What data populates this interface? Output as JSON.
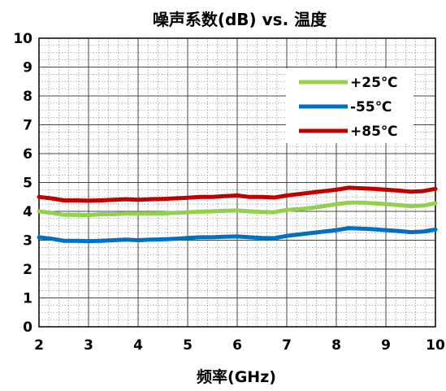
{
  "chart_data": {
    "type": "line",
    "title": "噪声系数(dB) vs. 温度",
    "xlabel": "频率(GHz)",
    "ylabel": "",
    "xlim": [
      2,
      10
    ],
    "ylim": [
      0,
      10
    ],
    "x_ticks": [
      "2",
      "3",
      "4",
      "5",
      "6",
      "7",
      "8",
      "9",
      "10"
    ],
    "y_ticks": [
      "0",
      "1",
      "2",
      "3",
      "4",
      "5",
      "6",
      "7",
      "8",
      "9",
      "10"
    ],
    "grid": true,
    "legend_position": "top-right",
    "x": [
      2.0,
      2.25,
      2.5,
      2.75,
      3.0,
      3.25,
      3.5,
      3.75,
      4.0,
      4.25,
      4.5,
      4.75,
      5.0,
      5.25,
      5.5,
      5.75,
      6.0,
      6.25,
      6.5,
      6.75,
      7.0,
      7.25,
      7.5,
      7.75,
      8.0,
      8.25,
      8.5,
      8.75,
      9.0,
      9.25,
      9.5,
      9.75,
      10.0
    ],
    "series": [
      {
        "name": "+25℃",
        "color": "#92d050",
        "values": [
          4.0,
          3.95,
          3.88,
          3.88,
          3.87,
          3.9,
          3.9,
          3.92,
          3.92,
          3.92,
          3.93,
          3.95,
          3.97,
          3.99,
          4.0,
          4.02,
          4.03,
          4.0,
          3.98,
          3.97,
          4.05,
          4.08,
          4.12,
          4.18,
          4.25,
          4.3,
          4.3,
          4.28,
          4.25,
          4.22,
          4.18,
          4.2,
          4.28
        ]
      },
      {
        "name": "-55℃",
        "color": "#0070c0",
        "values": [
          3.1,
          3.05,
          2.98,
          2.98,
          2.97,
          2.98,
          3.0,
          3.02,
          3.0,
          3.02,
          3.03,
          3.05,
          3.08,
          3.1,
          3.1,
          3.12,
          3.13,
          3.1,
          3.08,
          3.07,
          3.15,
          3.2,
          3.25,
          3.3,
          3.35,
          3.42,
          3.4,
          3.38,
          3.35,
          3.32,
          3.28,
          3.3,
          3.37
        ]
      },
      {
        "name": "+85℃",
        "color": "#c00000",
        "values": [
          4.5,
          4.45,
          4.38,
          4.38,
          4.37,
          4.38,
          4.4,
          4.42,
          4.4,
          4.42,
          4.43,
          4.45,
          4.47,
          4.5,
          4.5,
          4.53,
          4.55,
          4.5,
          4.5,
          4.48,
          4.55,
          4.6,
          4.65,
          4.7,
          4.75,
          4.82,
          4.8,
          4.78,
          4.75,
          4.72,
          4.68,
          4.7,
          4.78
        ]
      }
    ]
  }
}
